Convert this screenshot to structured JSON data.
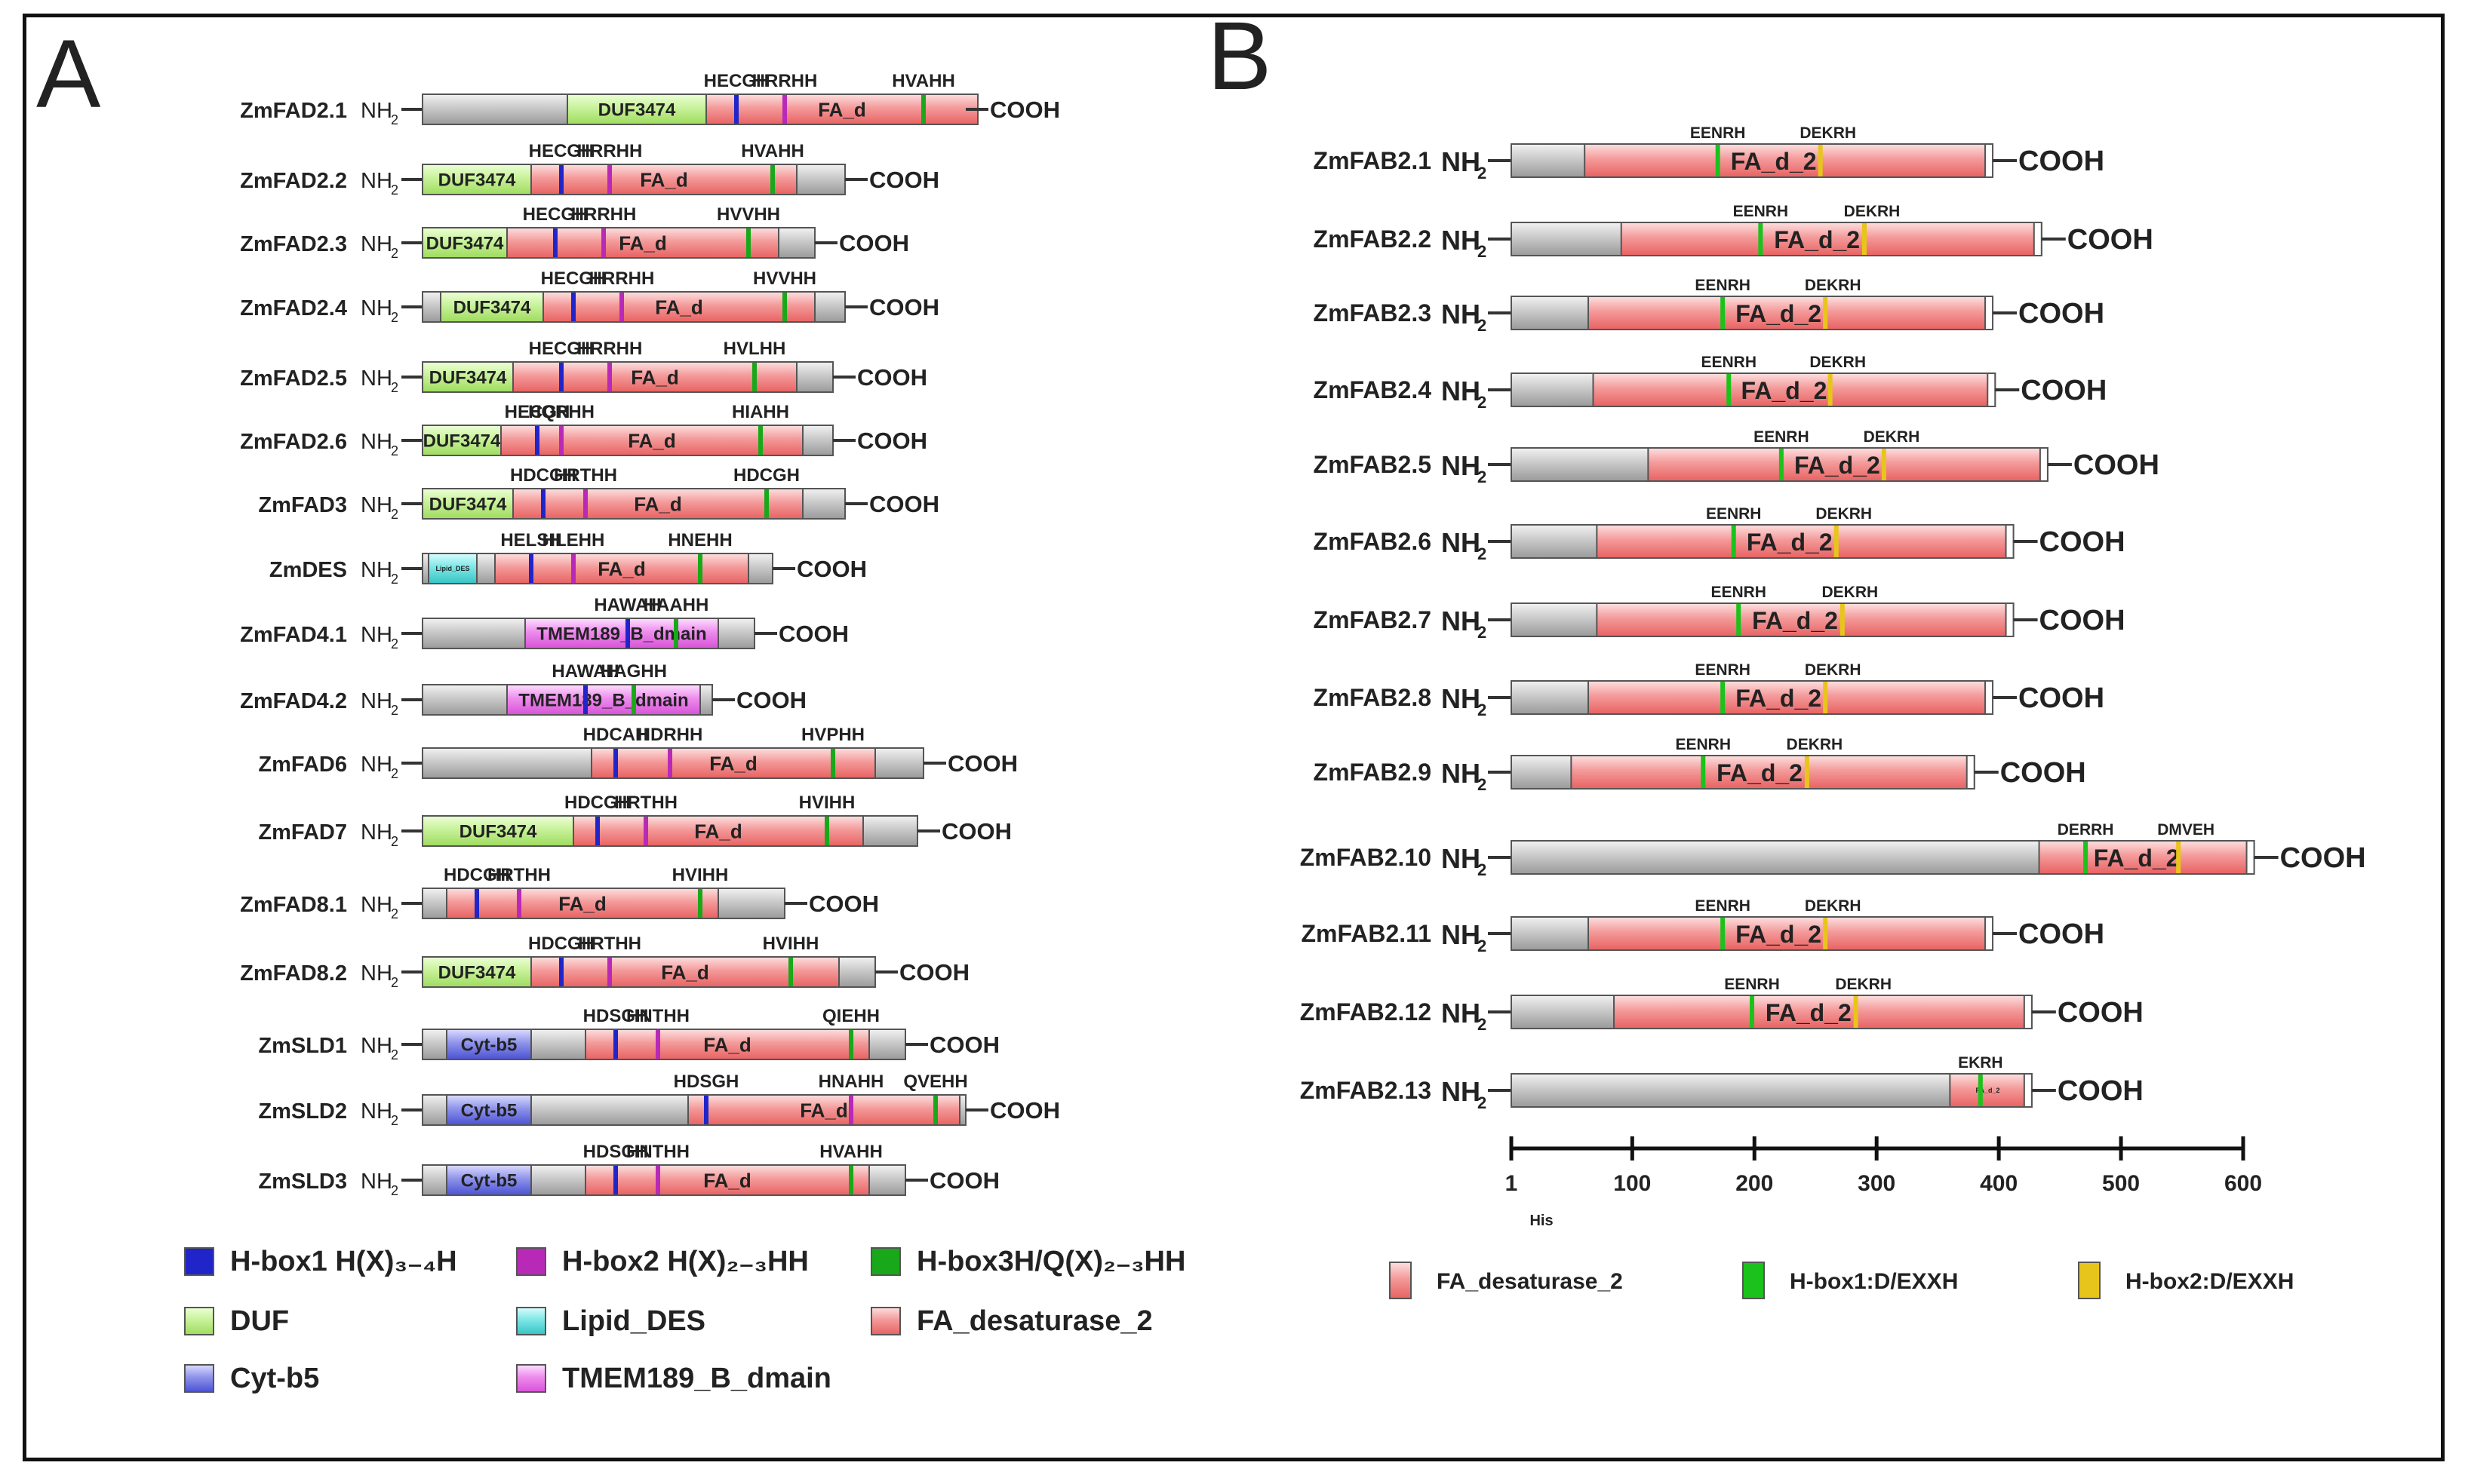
{
  "panel_a": {
    "label": "A",
    "nh2": "NH",
    "nh2_sub": "2",
    "cooh": "COOH",
    "proteins": [
      {
        "name": "ZmFAD2.1",
        "len": 9,
        "domains": [
          {
            "type": "duf",
            "label": "DUF3474",
            "s": 2.4,
            "e": 4.7
          },
          {
            "type": "fad",
            "label": "FA_d",
            "s": 4.7,
            "e": 9.2
          }
        ],
        "motifs": [
          {
            "type": "h1",
            "label": "HECGH",
            "p": 5.2
          },
          {
            "type": "h2",
            "label": "HRRHH",
            "p": 6.0
          },
          {
            "type": "h3",
            "label": "HVAHH",
            "p": 8.3
          }
        ]
      },
      {
        "name": "ZmFAD2.2",
        "len": 7,
        "domains": [
          {
            "type": "duf",
            "label": "DUF3474",
            "s": 0,
            "e": 1.8
          },
          {
            "type": "fad",
            "label": "FA_d",
            "s": 1.8,
            "e": 6.2
          }
        ],
        "motifs": [
          {
            "type": "h1",
            "label": "HECGH",
            "p": 2.3
          },
          {
            "type": "h2",
            "label": "HRRHH",
            "p": 3.1
          },
          {
            "type": "h3",
            "label": "HVAHH",
            "p": 5.8
          }
        ]
      },
      {
        "name": "ZmFAD2.3",
        "len": 6.5,
        "domains": [
          {
            "type": "duf",
            "label": "DUF3474",
            "s": 0,
            "e": 1.4
          },
          {
            "type": "fad",
            "label": "FA_d",
            "s": 1.4,
            "e": 5.9
          }
        ],
        "motifs": [
          {
            "type": "h1",
            "label": "HECGH",
            "p": 2.2
          },
          {
            "type": "h2",
            "label": "HRRHH",
            "p": 3.0
          },
          {
            "type": "h3",
            "label": "HVVHH",
            "p": 5.4
          }
        ]
      },
      {
        "name": "ZmFAD2.4",
        "len": 7,
        "domains": [
          {
            "type": "duf",
            "label": "DUF3474",
            "s": 0.3,
            "e": 2.0
          },
          {
            "type": "fad",
            "label": "FA_d",
            "s": 2.0,
            "e": 6.5
          }
        ],
        "motifs": [
          {
            "type": "h1",
            "label": "HECGH",
            "p": 2.5
          },
          {
            "type": "h2",
            "label": "HRRHH",
            "p": 3.3
          },
          {
            "type": "h3",
            "label": "HVVHH",
            "p": 6.0
          }
        ]
      },
      {
        "name": "ZmFAD2.5",
        "len": 6.8,
        "domains": [
          {
            "type": "duf",
            "label": "DUF3474",
            "s": 0,
            "e": 1.5
          },
          {
            "type": "fad",
            "label": "FA_d",
            "s": 1.5,
            "e": 6.2
          }
        ],
        "motifs": [
          {
            "type": "h1",
            "label": "HECGH",
            "p": 2.3
          },
          {
            "type": "h2",
            "label": "HRRHH",
            "p": 3.1
          },
          {
            "type": "h3",
            "label": "HVLHH",
            "p": 5.5
          }
        ]
      },
      {
        "name": "ZmFAD2.6",
        "len": 6.8,
        "domains": [
          {
            "type": "duf",
            "label": "DUF3474",
            "s": 0,
            "e": 1.3
          },
          {
            "type": "fad",
            "label": "FA_d",
            "s": 1.3,
            "e": 6.3
          }
        ],
        "motifs": [
          {
            "type": "h1",
            "label": "HECGH",
            "p": 1.9
          },
          {
            "type": "h2",
            "label": "HQRHH",
            "p": 2.3
          },
          {
            "type": "h3",
            "label": "HIAHH",
            "p": 5.6
          }
        ]
      },
      {
        "name": "ZmFAD3",
        "len": 7,
        "domains": [
          {
            "type": "duf",
            "label": "DUF3474",
            "s": 0,
            "e": 1.5
          },
          {
            "type": "fad",
            "label": "FA_d",
            "s": 1.5,
            "e": 6.3
          }
        ],
        "motifs": [
          {
            "type": "h1",
            "label": "HDCGH",
            "p": 2.0
          },
          {
            "type": "h2",
            "label": "HRTHH",
            "p": 2.7
          },
          {
            "type": "h3",
            "label": "HDCGH",
            "p": 5.7
          }
        ]
      },
      {
        "name": "ZmDES",
        "len": 5.8,
        "domains": [
          {
            "type": "lipid",
            "label": "Lipid_DES",
            "s": 0.1,
            "e": 0.9
          },
          {
            "type": "fad",
            "label": "FA_d",
            "s": 1.2,
            "e": 5.4
          }
        ],
        "motifs": [
          {
            "type": "h1",
            "label": "HELSH",
            "p": 1.8
          },
          {
            "type": "h2",
            "label": "HLEHH",
            "p": 2.5
          },
          {
            "type": "h3",
            "label": "HNEHH",
            "p": 4.6
          }
        ]
      },
      {
        "name": "ZmFAD4.1",
        "len": 5.5,
        "domains": [
          {
            "type": "tmem",
            "label": "TMEM189_B_dmain",
            "s": 1.7,
            "e": 4.9
          }
        ],
        "motifs": [
          {
            "type": "h1",
            "label": "HAWAH",
            "p": 3.4
          },
          {
            "type": "h3",
            "label": "HAAHH",
            "p": 4.2
          }
        ]
      },
      {
        "name": "ZmFAD4.2",
        "len": 4.8,
        "domains": [
          {
            "type": "tmem",
            "label": "TMEM189_B_dmain",
            "s": 1.4,
            "e": 4.6
          }
        ],
        "motifs": [
          {
            "type": "h1",
            "label": "HAWAH",
            "p": 2.7
          },
          {
            "type": "h3",
            "label": "HAGHH",
            "p": 3.5
          }
        ]
      },
      {
        "name": "ZmFAD6",
        "len": 8.3,
        "domains": [
          {
            "type": "fad",
            "label": "FA_d",
            "s": 2.8,
            "e": 7.5
          }
        ],
        "motifs": [
          {
            "type": "h1",
            "label": "HDCAH",
            "p": 3.2
          },
          {
            "type": "h2",
            "label": "HDRHH",
            "p": 4.1
          },
          {
            "type": "h3",
            "label": "HVPHH",
            "p": 6.8
          }
        ]
      },
      {
        "name": "ZmFAD7",
        "len": 8.2,
        "domains": [
          {
            "type": "duf",
            "label": "DUF3474",
            "s": 0,
            "e": 2.5
          },
          {
            "type": "fad",
            "label": "FA_d",
            "s": 2.5,
            "e": 7.3
          }
        ],
        "motifs": [
          {
            "type": "h1",
            "label": "HDCGH",
            "p": 2.9
          },
          {
            "type": "h2",
            "label": "HRTHH",
            "p": 3.7
          },
          {
            "type": "h3",
            "label": "HVIHH",
            "p": 6.7
          }
        ]
      },
      {
        "name": "ZmFAD8.1",
        "len": 6.0,
        "domains": [
          {
            "type": "fad",
            "label": "FA_d",
            "s": 0.4,
            "e": 4.9
          }
        ],
        "motifs": [
          {
            "type": "h1",
            "label": "HDCGH",
            "p": 0.9
          },
          {
            "type": "h2",
            "label": "HRTHH",
            "p": 1.6
          },
          {
            "type": "h3",
            "label": "HVIHH",
            "p": 4.6
          }
        ]
      },
      {
        "name": "ZmFAD8.2",
        "len": 7.5,
        "domains": [
          {
            "type": "duf",
            "label": "DUF3474",
            "s": 0,
            "e": 1.8
          },
          {
            "type": "fad",
            "label": "FA_d",
            "s": 1.8,
            "e": 6.9
          }
        ],
        "motifs": [
          {
            "type": "h1",
            "label": "HDCGH",
            "p": 2.3
          },
          {
            "type": "h2",
            "label": "HRTHH",
            "p": 3.1
          },
          {
            "type": "h3",
            "label": "HVIHH",
            "p": 6.1
          }
        ]
      },
      {
        "name": "ZmSLD1",
        "len": 8.0,
        "domains": [
          {
            "type": "cyt",
            "label": "Cyt-b5",
            "s": 0.4,
            "e": 1.8
          },
          {
            "type": "fad",
            "label": "FA_d",
            "s": 2.7,
            "e": 7.4
          }
        ],
        "motifs": [
          {
            "type": "h1",
            "label": "HDSGH",
            "p": 3.2
          },
          {
            "type": "h2",
            "label": "HNTHH",
            "p": 3.9
          },
          {
            "type": "h3",
            "label": "QIEHH",
            "p": 7.1
          }
        ]
      },
      {
        "name": "ZmSLD2",
        "len": 9.0,
        "domains": [
          {
            "type": "cyt",
            "label": "Cyt-b5",
            "s": 0.4,
            "e": 1.8
          },
          {
            "type": "fad",
            "label": "FA_d",
            "s": 4.4,
            "e": 8.9
          }
        ],
        "motifs": [
          {
            "type": "h1",
            "label": "HDSGH",
            "p": 4.7
          },
          {
            "type": "h2",
            "label": "HNAHH",
            "p": 7.1
          },
          {
            "type": "h3",
            "label": "QVEHH",
            "p": 8.5
          }
        ]
      },
      {
        "name": "ZmSLD3",
        "len": 8.0,
        "domains": [
          {
            "type": "cyt",
            "label": "Cyt-b5",
            "s": 0.4,
            "e": 1.8
          },
          {
            "type": "fad",
            "label": "FA_d",
            "s": 2.7,
            "e": 7.4
          }
        ],
        "motifs": [
          {
            "type": "h1",
            "label": "HDSGH",
            "p": 3.2
          },
          {
            "type": "h2",
            "label": "HNTHH",
            "p": 3.9
          },
          {
            "type": "h3",
            "label": "HVAHH",
            "p": 7.1
          }
        ]
      }
    ],
    "legend": [
      {
        "type": "h1",
        "label": "H-box1 H(X)₃₋₄H"
      },
      {
        "type": "h2",
        "label": "H-box2 H(X)₂₋₃HH"
      },
      {
        "type": "h3",
        "label": "H-box3H/Q(X)₂₋₃HH"
      },
      {
        "type": "duf",
        "label": "DUF"
      },
      {
        "type": "lipid",
        "label": "Lipid_DES"
      },
      {
        "type": "fad",
        "label": "FA_desaturase_2"
      },
      {
        "type": "cyt",
        "label": "Cyt-b5"
      },
      {
        "type": "tmem",
        "label": "TMEM189_B_dmain"
      }
    ]
  },
  "panel_b": {
    "label": "B",
    "nh2": "NH",
    "nh2_sub": "2",
    "cooh": "COOH",
    "axis": {
      "ticks": [
        1,
        100,
        200,
        300,
        400,
        500,
        600
      ],
      "label": "His"
    },
    "proteins": [
      {
        "name": "ZmFAB2.1",
        "len": 395,
        "fad": [
          61,
          392
        ],
        "domain_label": "FA_d_2",
        "m1": {
          "label": "EENRH",
          "p": 170
        },
        "m2": {
          "label": "DEKRH",
          "p": 254
        }
      },
      {
        "name": "ZmFAB2.2",
        "len": 435,
        "fad": [
          91,
          432
        ],
        "domain_label": "FA_d_2",
        "m1": {
          "label": "EENRH",
          "p": 205
        },
        "m2": {
          "label": "DEKRH",
          "p": 290
        }
      },
      {
        "name": "ZmFAB2.3",
        "len": 395,
        "fad": [
          64,
          392
        ],
        "domain_label": "FA_d_2",
        "m1": {
          "label": "EENRH",
          "p": 174
        },
        "m2": {
          "label": "DEKRH",
          "p": 258
        }
      },
      {
        "name": "ZmFAB2.4",
        "len": 397,
        "fad": [
          68,
          394
        ],
        "domain_label": "FA_d_2",
        "m1": {
          "label": "EENRH",
          "p": 179
        },
        "m2": {
          "label": "DEKRH",
          "p": 262
        }
      },
      {
        "name": "ZmFAB2.5",
        "len": 440,
        "fad": [
          113,
          436
        ],
        "domain_label": "FA_d_2",
        "m1": {
          "label": "EENRH",
          "p": 222
        },
        "m2": {
          "label": "DEKRH",
          "p": 306
        }
      },
      {
        "name": "ZmFAB2.6",
        "len": 412,
        "fad": [
          71,
          409
        ],
        "domain_label": "FA_d_2",
        "m1": {
          "label": "EENRH",
          "p": 183
        },
        "m2": {
          "label": "DEKRH",
          "p": 267
        }
      },
      {
        "name": "ZmFAB2.7",
        "len": 412,
        "fad": [
          71,
          409
        ],
        "domain_label": "FA_d_2",
        "m1": {
          "label": "EENRH",
          "p": 187
        },
        "m2": {
          "label": "DEKRH",
          "p": 272
        }
      },
      {
        "name": "ZmFAB2.8",
        "len": 395,
        "fad": [
          64,
          392
        ],
        "domain_label": "FA_d_2",
        "m1": {
          "label": "EENRH",
          "p": 174
        },
        "m2": {
          "label": "DEKRH",
          "p": 258
        }
      },
      {
        "name": "ZmFAB2.9",
        "len": 380,
        "fad": [
          50,
          378
        ],
        "domain_label": "FA_d_2",
        "m1": {
          "label": "EENRH",
          "p": 158
        },
        "m2": {
          "label": "DEKRH",
          "p": 243
        }
      },
      {
        "name": "ZmFAB2.10",
        "len": 609,
        "fad": [
          433,
          606
        ],
        "domain_label": "FA_d_2",
        "m1": {
          "label": "DERRH",
          "p": 471
        },
        "m2": {
          "label": "DMVEH",
          "p": 547
        }
      },
      {
        "name": "ZmFAB2.11",
        "len": 395,
        "fad": [
          64,
          392
        ],
        "domain_label": "FA_d_2",
        "m1": {
          "label": "EENRH",
          "p": 174
        },
        "m2": {
          "label": "DEKRH",
          "p": 258
        }
      },
      {
        "name": "ZmFAB2.12",
        "len": 427,
        "fad": [
          85,
          424
        ],
        "domain_label": "FA_d_2",
        "m1": {
          "label": "EENRH",
          "p": 198
        },
        "m2": {
          "label": "DEKRH",
          "p": 283
        }
      },
      {
        "name": "ZmFAB2.13",
        "len": 427,
        "fad": [
          360,
          422
        ],
        "domain_label": "FA_d_2",
        "m1": {
          "label": "EKRH",
          "p": 385
        },
        "m2": null
      }
    ],
    "legend": [
      {
        "type": "fad",
        "label": "FA_desaturase_2"
      },
      {
        "type": "g",
        "label": "H-box1:D/EXXH"
      },
      {
        "type": "y",
        "label": "H-box2:D/EXXH"
      }
    ]
  },
  "colors": {
    "gray": "#c9c9c9",
    "fad": "#f49a9a",
    "duf": "#c8f29a",
    "cyt": "#8f94ea",
    "lipid": "#7ee6e6",
    "tmem": "#ee8cee",
    "h1": "#1f25c9",
    "h2": "#b829b8",
    "h3": "#19a81a",
    "g": "#1bc21b",
    "y": "#e8c51b",
    "line": "#333333"
  }
}
